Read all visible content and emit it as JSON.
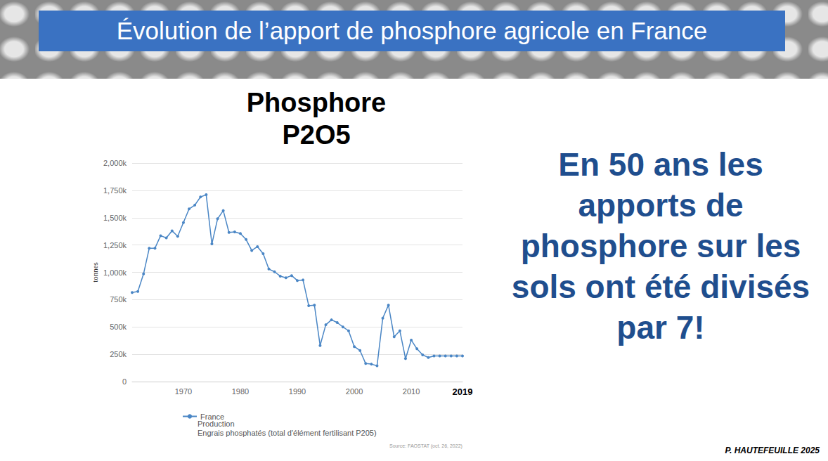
{
  "header": {
    "title": "Évolution de l’apport de phosphore agricole en France"
  },
  "statement": "En 50 ans les apports de phosphore sur les sols ont été divisés par 7!",
  "author": "P. HAUTEFEUILLE 2025",
  "chart_data": {
    "type": "line",
    "title": "Phosphore\nP2O5",
    "y_label": "tonnes",
    "x": [
      1961,
      1962,
      1963,
      1964,
      1965,
      1966,
      1967,
      1968,
      1969,
      1970,
      1971,
      1972,
      1973,
      1974,
      1975,
      1976,
      1977,
      1978,
      1979,
      1980,
      1981,
      1982,
      1983,
      1984,
      1985,
      1986,
      1987,
      1988,
      1989,
      1990,
      1991,
      1992,
      1993,
      1994,
      1995,
      1996,
      1997,
      1998,
      1999,
      2000,
      2001,
      2002,
      2003,
      2004,
      2005,
      2006,
      2007,
      2008,
      2009,
      2010,
      2011,
      2012,
      2013,
      2014,
      2015,
      2016,
      2017,
      2018,
      2019
    ],
    "series": [
      {
        "name": "France",
        "color": "#4a86c5",
        "marker": "circle",
        "values": [
          815000,
          825000,
          985000,
          1220000,
          1220000,
          1335000,
          1315000,
          1380000,
          1330000,
          1455000,
          1580000,
          1615000,
          1690000,
          1710000,
          1260000,
          1490000,
          1565000,
          1365000,
          1370000,
          1355000,
          1300000,
          1200000,
          1235000,
          1170000,
          1030000,
          1005000,
          965000,
          950000,
          970000,
          925000,
          930000,
          695000,
          700000,
          330000,
          520000,
          565000,
          540000,
          500000,
          465000,
          320000,
          285000,
          165000,
          160000,
          145000,
          580000,
          700000,
          410000,
          465000,
          210000,
          380000,
          300000,
          245000,
          220000,
          235000,
          235000,
          235000,
          235000,
          235000,
          235000
        ]
      }
    ],
    "annotations": [
      "Production",
      "Engrais phosphatés (total d'élément fertilisant P205)"
    ],
    "source": "Source: FAOSTAT (oct. 26, 2022)",
    "xlim": [
      1961,
      2019
    ],
    "xticks": [
      1970,
      1980,
      1990,
      2000,
      2010,
      2019
    ],
    "ylim": [
      0,
      2000000
    ],
    "yticks": [
      0,
      {
        "value": 250000,
        "label": "250k"
      },
      {
        "value": 500000,
        "label": "500k"
      },
      {
        "value": 750000,
        "label": "750k"
      },
      {
        "value": 1000000,
        "label": "1,000k"
      },
      {
        "value": 1250000,
        "label": "1,250k"
      },
      {
        "value": 1500000,
        "label": "1,500k"
      },
      {
        "value": 1750000,
        "label": "1,750k"
      },
      {
        "value": 2000000,
        "label": "2,000k"
      }
    ],
    "grid": true,
    "legend": "bottom-left"
  }
}
